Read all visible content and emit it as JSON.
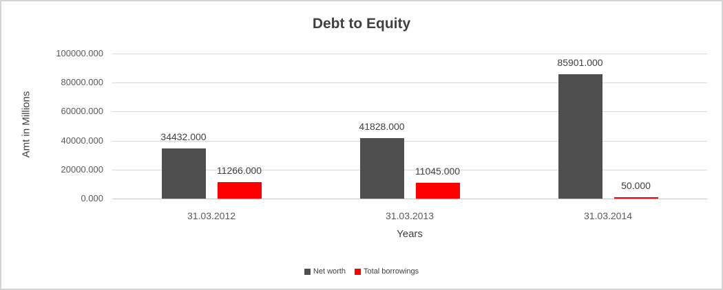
{
  "chart_data": {
    "type": "bar",
    "title": "Debt to Equity",
    "xlabel": "Years",
    "ylabel": "Amt in Millions",
    "categories": [
      "31.03.2012",
      "31.03.2013",
      "31.03.2014"
    ],
    "series": [
      {
        "name": "Net worth",
        "color": "#4f4f4f",
        "values": [
          34432,
          41828,
          85901
        ],
        "data_labels": [
          "34432.000",
          "41828.000",
          "85901.000"
        ]
      },
      {
        "name": "Total borrowings",
        "color": "#ff0000",
        "values": [
          11266,
          11045,
          50
        ],
        "data_labels": [
          "11266.000",
          "11045.000",
          "50.000"
        ]
      }
    ],
    "ylim": [
      0,
      100000
    ],
    "yticks": [
      {
        "value": 0,
        "label": "0.000"
      },
      {
        "value": 20000,
        "label": "20000.000"
      },
      {
        "value": 40000,
        "label": "40000.000"
      },
      {
        "value": 60000,
        "label": "60000.000"
      },
      {
        "value": 80000,
        "label": "80000.000"
      },
      {
        "value": 100000,
        "label": "100000.000"
      }
    ],
    "grid": true,
    "legend_position": "bottom"
  },
  "style_colors": {
    "title_text": "#404040",
    "axis_tick_text": "#595959",
    "axis_title_text": "#404040",
    "data_label_text": "#404040",
    "legend_text": "#404040",
    "gridline": "#d9d9d9",
    "axis_line": "#c6c6c6",
    "chart_border": "#d4d4d4",
    "background": "#ffffff"
  }
}
